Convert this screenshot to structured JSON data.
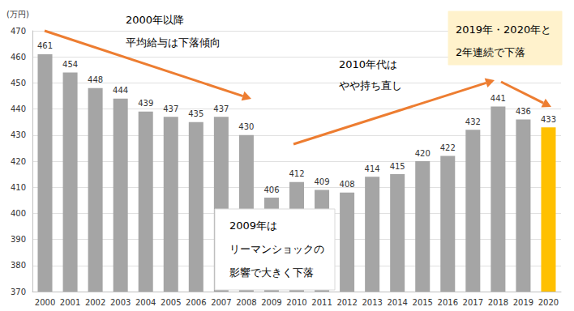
{
  "chart_data": {
    "type": "bar",
    "y_label": "(万円)",
    "categories": [
      "2000",
      "2001",
      "2002",
      "2003",
      "2004",
      "2005",
      "2006",
      "2007",
      "2008",
      "2009",
      "2010",
      "2011",
      "2012",
      "2013",
      "2014",
      "2015",
      "2016",
      "2017",
      "2018",
      "2019",
      "2020"
    ],
    "values": [
      461,
      454,
      448,
      444,
      439,
      437,
      435,
      437,
      430,
      406,
      412,
      409,
      408,
      414,
      415,
      420,
      422,
      432,
      441,
      436,
      433
    ],
    "colors": [
      "#a5a5a5",
      "#a5a5a5",
      "#a5a5a5",
      "#a5a5a5",
      "#a5a5a5",
      "#a5a5a5",
      "#a5a5a5",
      "#a5a5a5",
      "#a5a5a5",
      "#a5a5a5",
      "#a5a5a5",
      "#a5a5a5",
      "#a5a5a5",
      "#a5a5a5",
      "#a5a5a5",
      "#a5a5a5",
      "#a5a5a5",
      "#a5a5a5",
      "#a5a5a5",
      "#a5a5a5",
      "#ffc000"
    ],
    "ylim": [
      370,
      470
    ],
    "yticks": [
      370,
      380,
      390,
      400,
      410,
      420,
      430,
      440,
      450,
      460,
      470
    ],
    "grid": true,
    "data_labels": true,
    "annotations": [
      "2000年以降\n平均給与は下落傾向",
      "2010年代は\nやや持ち直し",
      "2019年・2020年と\n2年連続で下落",
      "2009年は\nリーマンショックの\n影響で大きく下落"
    ]
  }
}
